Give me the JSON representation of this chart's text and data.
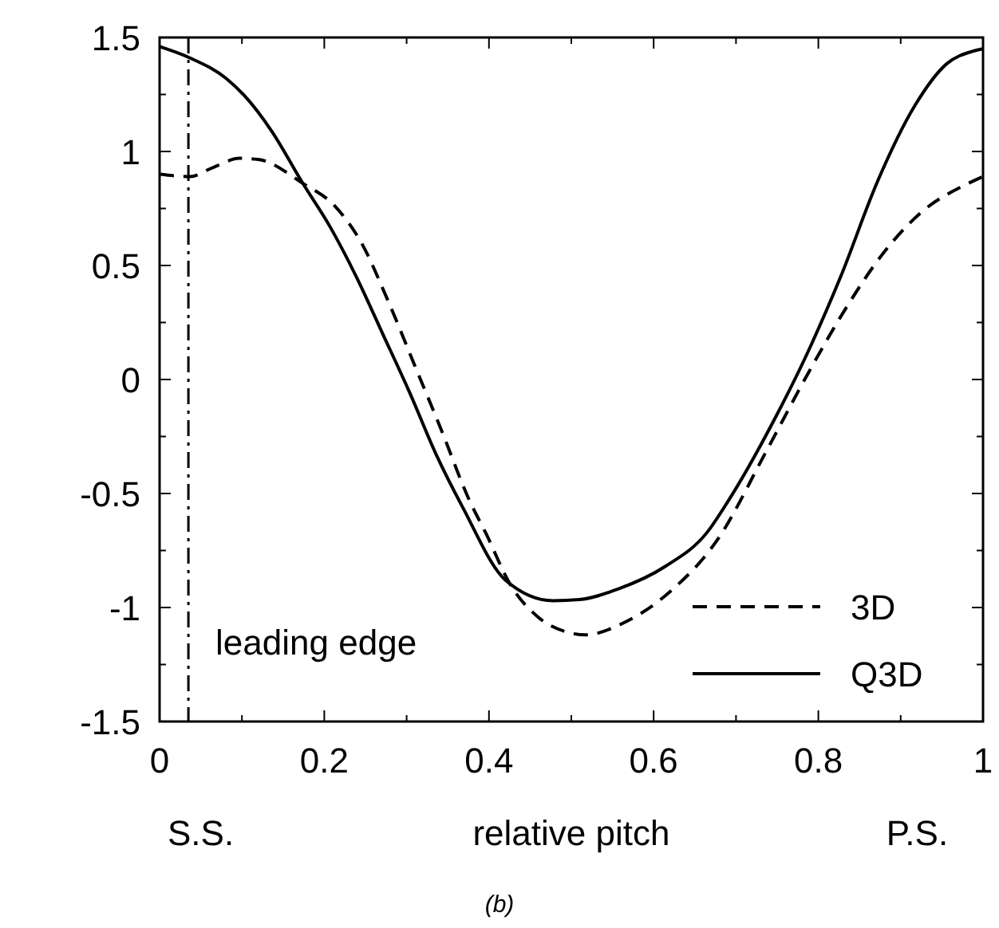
{
  "chart_data": {
    "type": "line",
    "xlabel": "relative pitch",
    "xlim": [
      0,
      1
    ],
    "ylim": [
      -1.5,
      1.5
    ],
    "xticks": [
      0,
      {
        "value": 0.1,
        "label": null
      },
      0.2,
      {
        "value": 0.3,
        "label": null
      },
      0.4,
      {
        "value": 0.5,
        "label": null
      },
      0.6,
      {
        "value": 0.7,
        "label": null
      },
      0.8,
      {
        "value": 0.9,
        "label": null
      },
      1
    ],
    "yticks": [
      -1.5,
      {
        "value": -1.25,
        "label": null
      },
      -1,
      {
        "value": -0.75,
        "label": null
      },
      -0.5,
      {
        "value": -0.25,
        "label": null
      },
      0,
      {
        "value": 0.25,
        "label": null
      },
      0.5,
      {
        "value": 0.75,
        "label": null
      },
      1,
      {
        "value": 1.25,
        "label": null
      },
      1.5
    ],
    "series": [
      {
        "name": "3D",
        "color": "#000000",
        "line_style": "dashed",
        "x": [
          0,
          0.037,
          0.065,
          0.097,
          0.12,
          0.174,
          0.213,
          0.245,
          0.278,
          0.31,
          0.342,
          0.375,
          0.397,
          0.426,
          0.459,
          0.497,
          0.517,
          0.562,
          0.62,
          0.678,
          0.736,
          0.788,
          0.833,
          0.878,
          0.924,
          0.982,
          1
        ],
        "values": [
          0.9,
          0.89,
          0.93,
          0.97,
          0.965,
          0.86,
          0.76,
          0.6,
          0.34,
          0.06,
          -0.22,
          -0.52,
          -0.68,
          -0.9,
          -1.04,
          -1.11,
          -1.12,
          -1.07,
          -0.93,
          -0.7,
          -0.32,
          0.03,
          0.31,
          0.55,
          0.73,
          0.86,
          0.89
        ]
      },
      {
        "name": "Q3D",
        "color": "#000000",
        "line_style": "solid",
        "x": [
          0,
          0.037,
          0.081,
          0.103,
          0.136,
          0.174,
          0.207,
          0.239,
          0.271,
          0.304,
          0.336,
          0.368,
          0.42,
          0.478,
          0.51,
          0.556,
          0.614,
          0.665,
          0.691,
          0.743,
          0.788,
          0.827,
          0.872,
          0.917,
          0.956,
          0.988,
          1
        ],
        "values": [
          1.46,
          1.41,
          1.32,
          1.245,
          1.09,
          0.86,
          0.67,
          0.45,
          0.2,
          -0.06,
          -0.33,
          -0.56,
          -0.88,
          -0.97,
          -0.965,
          -0.92,
          -0.82,
          -0.67,
          -0.53,
          -0.2,
          0.126,
          0.45,
          0.87,
          1.2,
          1.385,
          1.44,
          1.45
        ]
      }
    ],
    "ref_lines": [
      {
        "axis": "x",
        "value": 0.035,
        "label": "leading edge",
        "line_style": "dashdot"
      }
    ],
    "legend": "bottom right",
    "annotations": [
      "S.S.",
      "P.S.",
      "(b)"
    ]
  }
}
